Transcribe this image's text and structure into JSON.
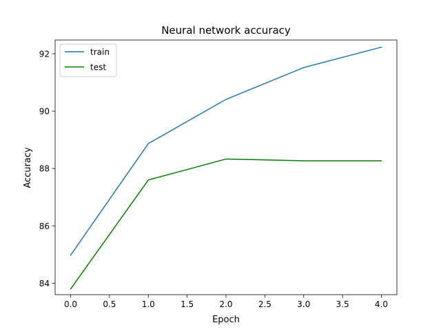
{
  "chart_data": {
    "type": "line",
    "title": "Neural network accuracy",
    "xlabel": "Epoch",
    "ylabel": "Accuracy",
    "x": [
      0,
      1,
      2,
      3,
      4
    ],
    "series": [
      {
        "name": "train",
        "values": [
          84.98,
          88.87,
          90.41,
          91.52,
          92.23
        ],
        "color": "#1f77b4"
      },
      {
        "name": "test",
        "values": [
          83.8,
          87.6,
          88.33,
          88.27,
          88.27
        ],
        "color": "#008000"
      }
    ],
    "xlim": [
      -0.2,
      4.2
    ],
    "ylim": [
      83.6,
      92.48
    ],
    "xticks": [
      0.0,
      0.5,
      1.0,
      1.5,
      2.0,
      2.5,
      3.0,
      3.5,
      4.0
    ],
    "xtick_labels": [
      "0.0",
      "0.5",
      "1.0",
      "1.5",
      "2.0",
      "2.5",
      "3.0",
      "3.5",
      "4.0"
    ],
    "yticks": [
      84,
      86,
      88,
      90,
      92
    ],
    "ytick_labels": [
      "84",
      "86",
      "88",
      "90",
      "92"
    ],
    "grid": false,
    "legend_position": "top-left"
  }
}
